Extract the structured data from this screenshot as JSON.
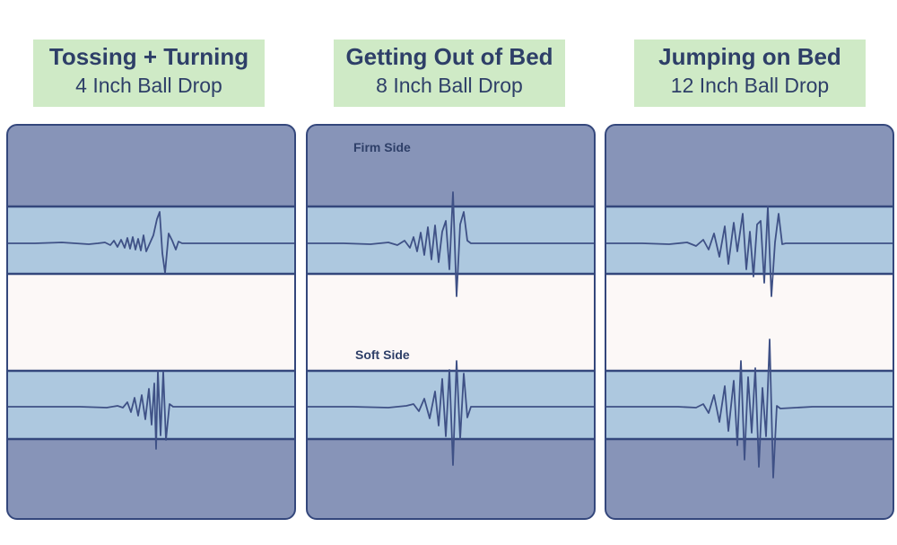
{
  "columns": [
    {
      "title": "Tossing + Turning",
      "subtitle": "4 Inch Ball Drop"
    },
    {
      "title": "Getting Out of Bed",
      "subtitle": "8 Inch Ball Drop"
    },
    {
      "title": "Jumping on Bed",
      "subtitle": "12 Inch Ball Drop"
    }
  ],
  "labels": {
    "firm": "Firm Side",
    "soft": "Soft Side"
  },
  "colors": {
    "header_bg": "#cfeac6",
    "header_text": "#2e3f68",
    "panel_border": "#34477c",
    "mattress_dark": "#8794b8",
    "wave_band": "#adc8df",
    "center_band": "#fcf8f7",
    "wave_line": "#3f5186"
  }
}
